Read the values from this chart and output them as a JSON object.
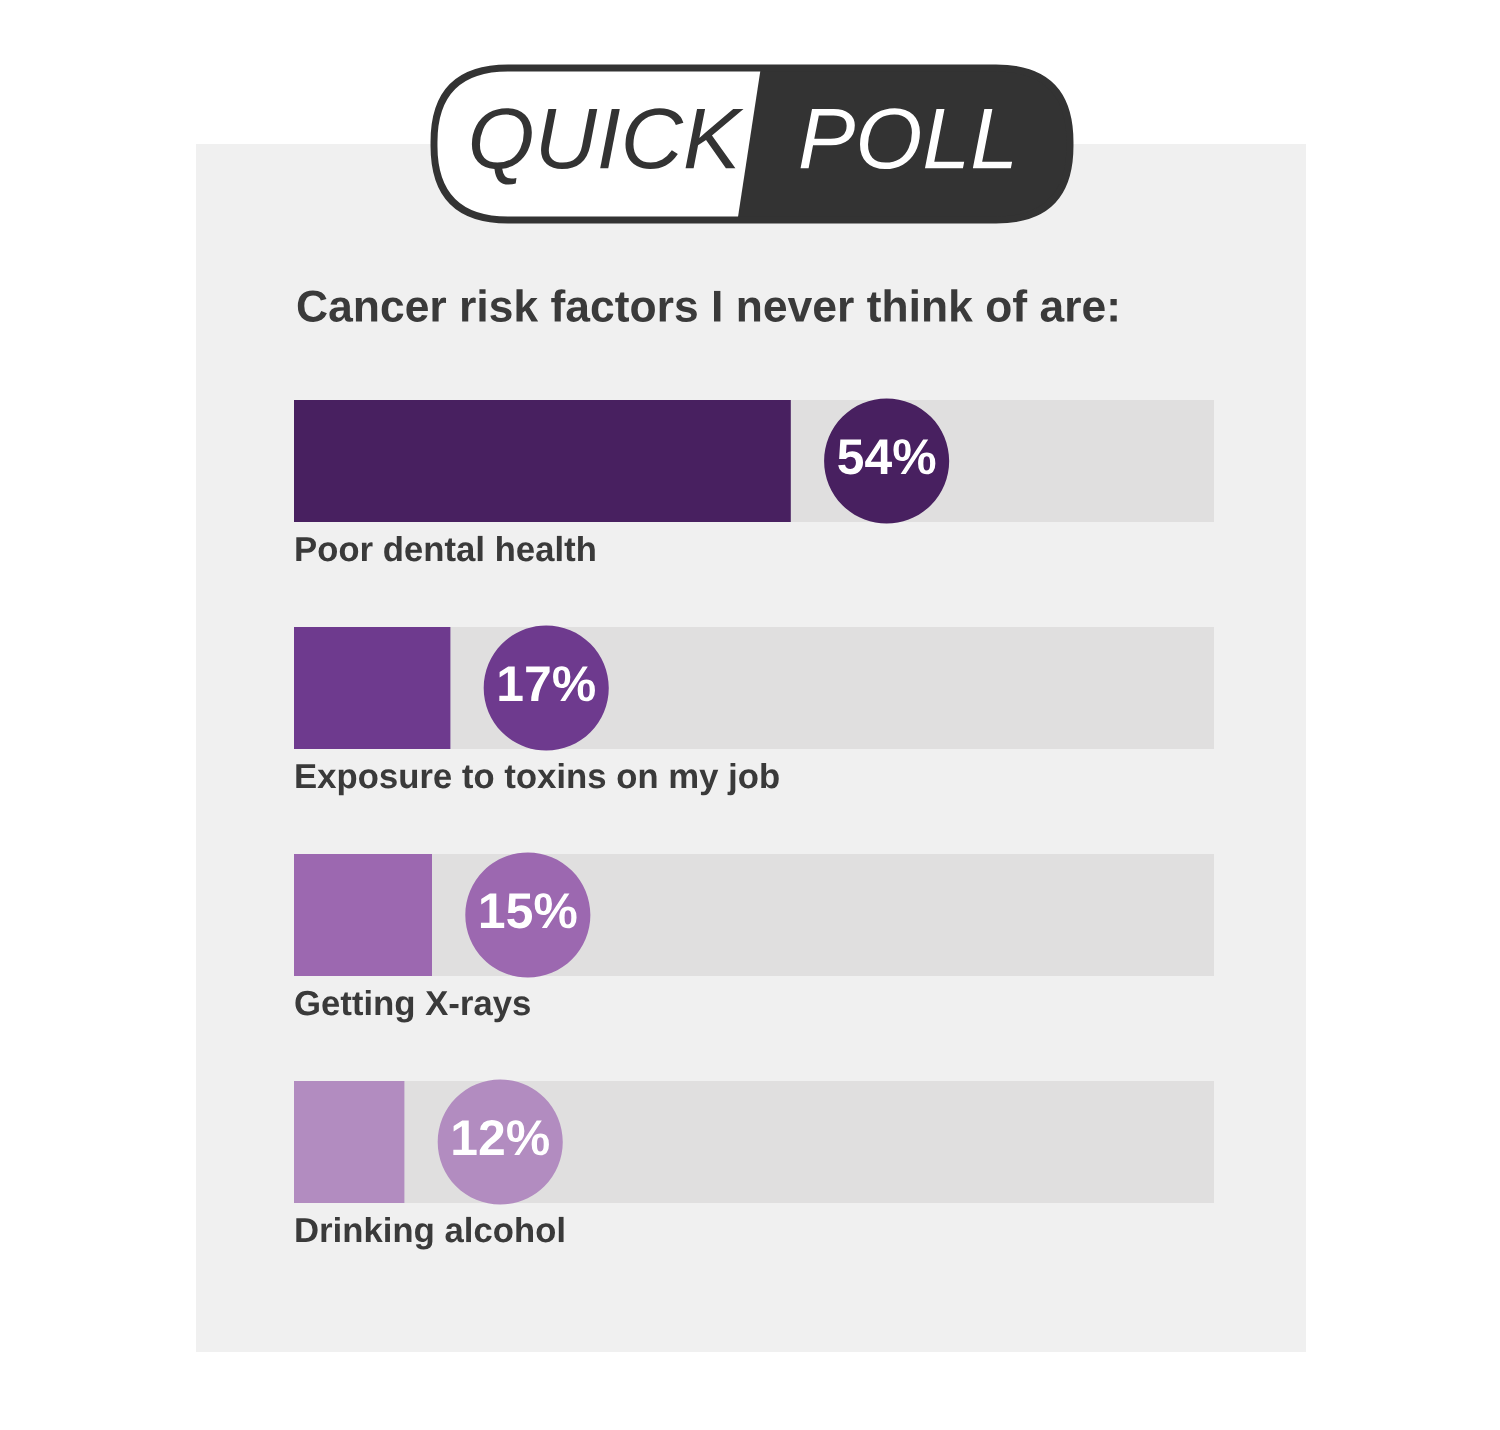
{
  "chart_data": {
    "type": "bar",
    "orientation": "horizontal",
    "title": "QUICK POLL",
    "subtitle": "Cancer risk factors I never think of are:",
    "categories": [
      "Poor dental health",
      "Exposure to toxins on my job",
      "Getting X-rays",
      "Drinking alcohol"
    ],
    "values": [
      54,
      17,
      15,
      12
    ],
    "colors": [
      "#482060",
      "#6e3a8e",
      "#9c68b0",
      "#b28cc0"
    ],
    "value_labels": [
      "54%",
      "17%",
      "15%",
      "12%"
    ],
    "xlim": [
      0,
      100
    ],
    "tick_labels": false
  }
}
